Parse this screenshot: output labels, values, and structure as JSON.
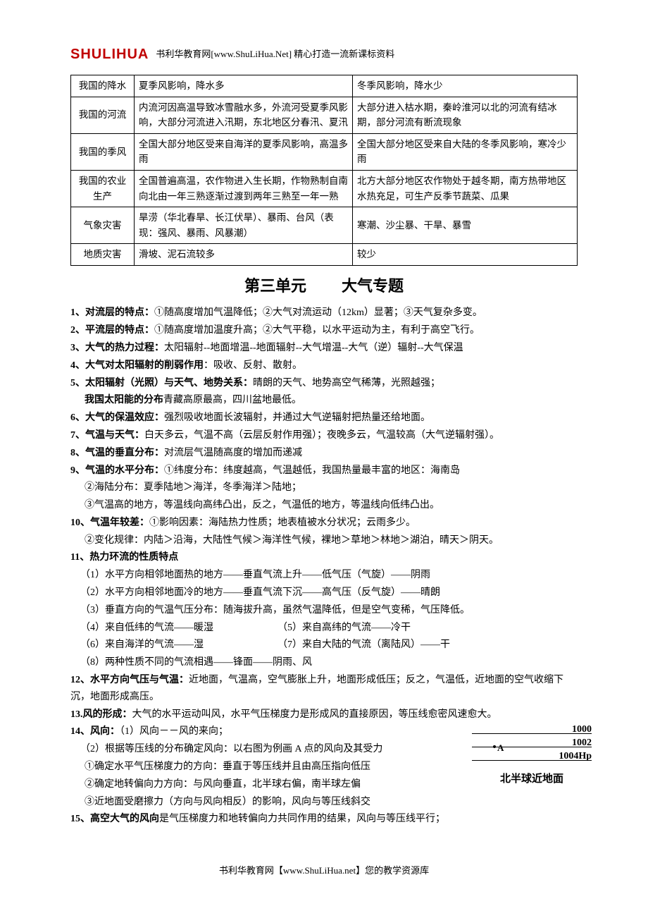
{
  "header": {
    "logo": "SHULIHUA",
    "text": "书利华教育网[www.ShuLiHua.Net]    精心打造一流新课标资料"
  },
  "table": {
    "rows": [
      {
        "c1": "我国的降水",
        "c2": "夏季风影响，降水多",
        "c3": "冬季风影响，降水少"
      },
      {
        "c1": "我国的河流",
        "c2": "内流河因高温导致冰雪融水多，外流河受夏季风影响，大部分河流进入汛期，东北地区分春汛、夏汛",
        "c3": "大部分进入枯水期，秦岭淮河以北的河流有结冰期，部分河流有断流现象"
      },
      {
        "c1": "我国的季风",
        "c2": "全国大部分地区受来自海洋的夏季风影响，高温多雨",
        "c3": "全国大部分地区受来自大陆的冬季风影响，寒冷少雨"
      },
      {
        "c1": "我国的农业生产",
        "c2": "全国普遍高温，农作物进入生长期，作物熟制自南向北由一年三熟逐渐过渡到两年三熟至一年一熟",
        "c3": "北方大部分地区农作物处于越冬期，南方热带地区水热充足，可生产反季节蔬菜、瓜果"
      },
      {
        "c1": "气象灾害",
        "c2": "旱涝（华北春旱、长江伏旱）、暴雨、台风（表现：强风、暴雨、风暴潮）",
        "c3": "寒潮、沙尘暴、干旱、暴雪"
      },
      {
        "c1": "地质灾害",
        "c2": "滑坡、泥石流较多",
        "c3": "较少"
      }
    ]
  },
  "unit": {
    "label1": "第三单元",
    "label2": "大气专题"
  },
  "items": {
    "l1": {
      "head": "1、对流层的特点：",
      "body": "①随高度增加气温降低；②大气对流运动（12km）显著；③天气复杂多变。"
    },
    "l2": {
      "head": "2、平流层的特点：",
      "body": "①随高度增加温度升高；②大气平稳，以水平运动为主，有利于高空飞行。"
    },
    "l3": {
      "head": "3、大气的热力过程：",
      "body": "太阳辐射--地面增温--地面辐射--大气增温--大气（逆）辐射--大气保温"
    },
    "l4": {
      "head": "4、大气对太阳辐射的削弱作用",
      "body": "：吸收、反射、散射。"
    },
    "l5": {
      "head": "5、太阳辐射（光照）与天气、地势关系：",
      "body": "晴朗的天气、地势高空气稀薄，光照越强；"
    },
    "l5b": {
      "head": "我国太阳能的分布",
      "body": "青藏高原最高，四川盆地最低。"
    },
    "l6": {
      "head": "6、大气的保温效应：",
      "body": "强烈吸收地面长波辐射，并通过大气逆辐射把热量还给地面。"
    },
    "l7": {
      "head": "7、气温与天气：",
      "body": "白天多云，气温不高（云层反射作用强）；夜晚多云，气温较高（大气逆辐射强）。"
    },
    "l8": {
      "head": "8、气温的垂直分布：",
      "body": "对流层气温随高度的增加而递减"
    },
    "l9": {
      "head": "9、气温的水平分布：",
      "body": "①纬度分布：纬度越高，气温越低，我国热量最丰富的地区：海南岛"
    },
    "l9b": "②海陆分布：夏季陆地＞海洋，冬季海洋＞陆地；",
    "l9c": "③气温高的地方，等温线向高纬凸出，反之，气温低的地方，等温线向低纬凸出。",
    "l10": {
      "head": "10、气温年较差：",
      "body": "①影响因素：海陆热力性质；地表植被水分状况；云雨多少。"
    },
    "l10b": "②变化规律：内陆＞沿海，大陆性气候＞海洋性气候，裸地＞草地＞林地＞湖泊，晴天＞阴天。",
    "l11": "11、热力环流的性质特点",
    "l11a": "（1）水平方向相邻地面热的地方——垂直气流上升――低气压（气旋）——阴雨",
    "l11b": "（2）水平方向相邻地面冷的地方——垂直气流下沉――高气压（反气旋）——晴朗",
    "l11c": "（3）垂直方向的气温气压分布：随海拔升高，虽然气温降低，但是空气变稀，气压降低。",
    "l11d": "（4）来自低纬的气流——暖湿　　　　　　　（5）来自高纬的气流——冷干",
    "l11e": "（6）来自海洋的气流——湿　　　　　　　　（7）来自大陆的气流（离陆风）——干",
    "l11f": "（8）两种性质不同的气流相遇——锋面——阴雨、风",
    "l12": {
      "head": "12、水平方向气压与气温：",
      "body": "近地面，气温高，空气膨胀上升，地面形成低压；反之，气温低，近地面的空气收缩下沉，地面形成高压。"
    },
    "l13": {
      "head": "13.风的形成：",
      "body": "大气的水平运动叫风，水平气压梯度力是形成风的直接原因，等压线愈密风速愈大。"
    },
    "l14": {
      "head": "14、风向：",
      "body": "（1）风向－－风的来向；"
    },
    "l14b": "（2）根据等压线的分布确定风向：以右图为例画 A 点的风向及其受力",
    "l14c": "①确定水平气压梯度力的方向：垂直于等压线并且由高压指向低压",
    "l14d": "②确定地转偏向力方向：与风向垂直，北半球右偏，南半球左偏",
    "l14e": "③近地面受磨擦力（方向与风向相反）的影响，风向与等压线斜交",
    "l15": {
      "head": "15、高空大气的风向",
      "body": "是气压梯度力和地转偏向力共同作用的结果，风向与等压线平行；"
    }
  },
  "diagram": {
    "iso": [
      {
        "label": "1000",
        "hasPoint": false
      },
      {
        "label": "1002",
        "hasPoint": true,
        "point": "A"
      },
      {
        "label": "1004Hp",
        "hasPoint": false
      }
    ],
    "caption": "北半球近地面"
  },
  "footer": "书利华教育网【www.ShuLiHua.net】您的教学资源库"
}
